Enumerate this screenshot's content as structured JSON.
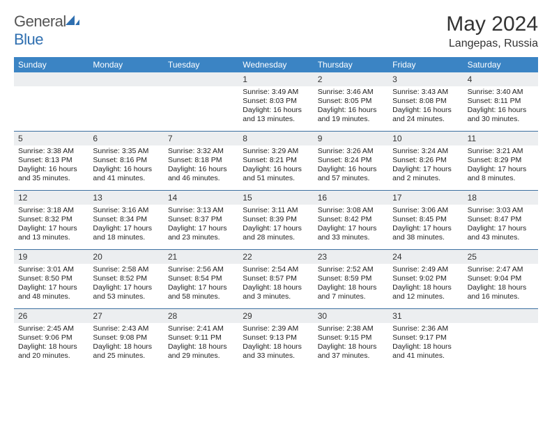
{
  "brand": {
    "part1": "General",
    "part2": "Blue"
  },
  "title": "May 2024",
  "location": "Langepas, Russia",
  "colors": {
    "header_bg": "#3b84c4",
    "daynum_bg": "#eceef0",
    "week_border": "#3b6fa0",
    "logo_blue": "#2f6fb0",
    "text": "#333333"
  },
  "days_of_week": [
    "Sunday",
    "Monday",
    "Tuesday",
    "Wednesday",
    "Thursday",
    "Friday",
    "Saturday"
  ],
  "weeks": [
    [
      {
        "n": "",
        "sr": "",
        "ss": "",
        "dl": ""
      },
      {
        "n": "",
        "sr": "",
        "ss": "",
        "dl": ""
      },
      {
        "n": "",
        "sr": "",
        "ss": "",
        "dl": ""
      },
      {
        "n": "1",
        "sr": "Sunrise: 3:49 AM",
        "ss": "Sunset: 8:03 PM",
        "dl": "Daylight: 16 hours and 13 minutes."
      },
      {
        "n": "2",
        "sr": "Sunrise: 3:46 AM",
        "ss": "Sunset: 8:05 PM",
        "dl": "Daylight: 16 hours and 19 minutes."
      },
      {
        "n": "3",
        "sr": "Sunrise: 3:43 AM",
        "ss": "Sunset: 8:08 PM",
        "dl": "Daylight: 16 hours and 24 minutes."
      },
      {
        "n": "4",
        "sr": "Sunrise: 3:40 AM",
        "ss": "Sunset: 8:11 PM",
        "dl": "Daylight: 16 hours and 30 minutes."
      }
    ],
    [
      {
        "n": "5",
        "sr": "Sunrise: 3:38 AM",
        "ss": "Sunset: 8:13 PM",
        "dl": "Daylight: 16 hours and 35 minutes."
      },
      {
        "n": "6",
        "sr": "Sunrise: 3:35 AM",
        "ss": "Sunset: 8:16 PM",
        "dl": "Daylight: 16 hours and 41 minutes."
      },
      {
        "n": "7",
        "sr": "Sunrise: 3:32 AM",
        "ss": "Sunset: 8:18 PM",
        "dl": "Daylight: 16 hours and 46 minutes."
      },
      {
        "n": "8",
        "sr": "Sunrise: 3:29 AM",
        "ss": "Sunset: 8:21 PM",
        "dl": "Daylight: 16 hours and 51 minutes."
      },
      {
        "n": "9",
        "sr": "Sunrise: 3:26 AM",
        "ss": "Sunset: 8:24 PM",
        "dl": "Daylight: 16 hours and 57 minutes."
      },
      {
        "n": "10",
        "sr": "Sunrise: 3:24 AM",
        "ss": "Sunset: 8:26 PM",
        "dl": "Daylight: 17 hours and 2 minutes."
      },
      {
        "n": "11",
        "sr": "Sunrise: 3:21 AM",
        "ss": "Sunset: 8:29 PM",
        "dl": "Daylight: 17 hours and 8 minutes."
      }
    ],
    [
      {
        "n": "12",
        "sr": "Sunrise: 3:18 AM",
        "ss": "Sunset: 8:32 PM",
        "dl": "Daylight: 17 hours and 13 minutes."
      },
      {
        "n": "13",
        "sr": "Sunrise: 3:16 AM",
        "ss": "Sunset: 8:34 PM",
        "dl": "Daylight: 17 hours and 18 minutes."
      },
      {
        "n": "14",
        "sr": "Sunrise: 3:13 AM",
        "ss": "Sunset: 8:37 PM",
        "dl": "Daylight: 17 hours and 23 minutes."
      },
      {
        "n": "15",
        "sr": "Sunrise: 3:11 AM",
        "ss": "Sunset: 8:39 PM",
        "dl": "Daylight: 17 hours and 28 minutes."
      },
      {
        "n": "16",
        "sr": "Sunrise: 3:08 AM",
        "ss": "Sunset: 8:42 PM",
        "dl": "Daylight: 17 hours and 33 minutes."
      },
      {
        "n": "17",
        "sr": "Sunrise: 3:06 AM",
        "ss": "Sunset: 8:45 PM",
        "dl": "Daylight: 17 hours and 38 minutes."
      },
      {
        "n": "18",
        "sr": "Sunrise: 3:03 AM",
        "ss": "Sunset: 8:47 PM",
        "dl": "Daylight: 17 hours and 43 minutes."
      }
    ],
    [
      {
        "n": "19",
        "sr": "Sunrise: 3:01 AM",
        "ss": "Sunset: 8:50 PM",
        "dl": "Daylight: 17 hours and 48 minutes."
      },
      {
        "n": "20",
        "sr": "Sunrise: 2:58 AM",
        "ss": "Sunset: 8:52 PM",
        "dl": "Daylight: 17 hours and 53 minutes."
      },
      {
        "n": "21",
        "sr": "Sunrise: 2:56 AM",
        "ss": "Sunset: 8:54 PM",
        "dl": "Daylight: 17 hours and 58 minutes."
      },
      {
        "n": "22",
        "sr": "Sunrise: 2:54 AM",
        "ss": "Sunset: 8:57 PM",
        "dl": "Daylight: 18 hours and 3 minutes."
      },
      {
        "n": "23",
        "sr": "Sunrise: 2:52 AM",
        "ss": "Sunset: 8:59 PM",
        "dl": "Daylight: 18 hours and 7 minutes."
      },
      {
        "n": "24",
        "sr": "Sunrise: 2:49 AM",
        "ss": "Sunset: 9:02 PM",
        "dl": "Daylight: 18 hours and 12 minutes."
      },
      {
        "n": "25",
        "sr": "Sunrise: 2:47 AM",
        "ss": "Sunset: 9:04 PM",
        "dl": "Daylight: 18 hours and 16 minutes."
      }
    ],
    [
      {
        "n": "26",
        "sr": "Sunrise: 2:45 AM",
        "ss": "Sunset: 9:06 PM",
        "dl": "Daylight: 18 hours and 20 minutes."
      },
      {
        "n": "27",
        "sr": "Sunrise: 2:43 AM",
        "ss": "Sunset: 9:08 PM",
        "dl": "Daylight: 18 hours and 25 minutes."
      },
      {
        "n": "28",
        "sr": "Sunrise: 2:41 AM",
        "ss": "Sunset: 9:11 PM",
        "dl": "Daylight: 18 hours and 29 minutes."
      },
      {
        "n": "29",
        "sr": "Sunrise: 2:39 AM",
        "ss": "Sunset: 9:13 PM",
        "dl": "Daylight: 18 hours and 33 minutes."
      },
      {
        "n": "30",
        "sr": "Sunrise: 2:38 AM",
        "ss": "Sunset: 9:15 PM",
        "dl": "Daylight: 18 hours and 37 minutes."
      },
      {
        "n": "31",
        "sr": "Sunrise: 2:36 AM",
        "ss": "Sunset: 9:17 PM",
        "dl": "Daylight: 18 hours and 41 minutes."
      },
      {
        "n": "",
        "sr": "",
        "ss": "",
        "dl": ""
      }
    ]
  ]
}
